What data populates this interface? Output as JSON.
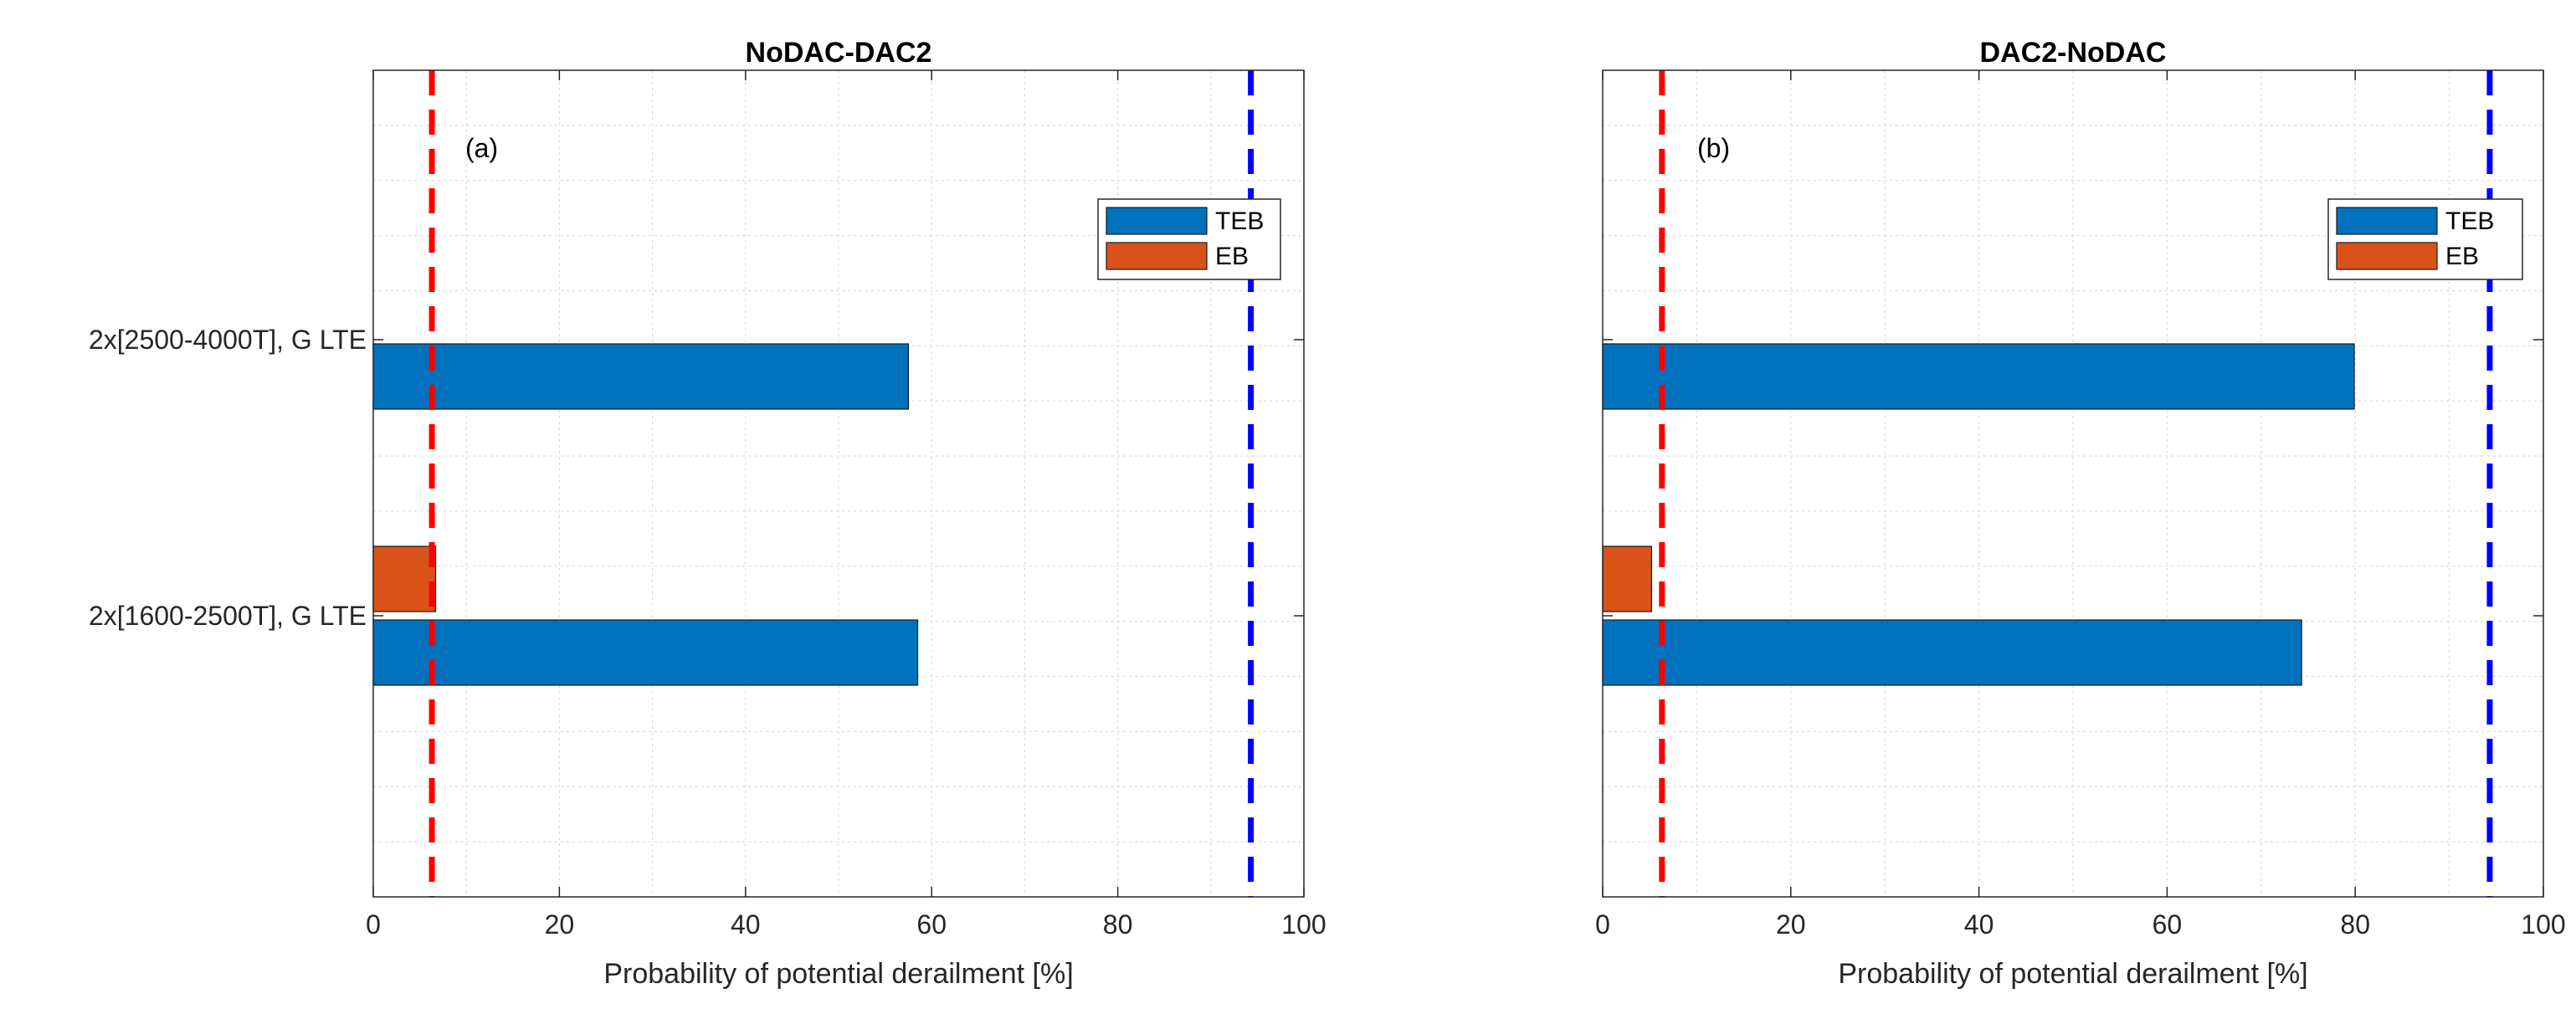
{
  "colors": {
    "teb": "#0072BD",
    "eb": "#D95319",
    "threshold_low": "#FF0000",
    "threshold_high": "#0000FF",
    "grid": "#dcdcdc",
    "axis": "#262626"
  },
  "chart_data": [
    {
      "type": "bar",
      "orientation": "horizontal",
      "title": "NoDAC-DAC2",
      "panel_label": "(a)",
      "xlabel": "Probability of potential derailment [%]",
      "ylabel": "",
      "xlim": [
        0,
        100
      ],
      "xticks": [
        "0",
        "20",
        "40",
        "60",
        "80",
        "100"
      ],
      "categories": [
        "2x[1600-2500T], G LTE",
        "2x[2500-4000T], G LTE"
      ],
      "series": [
        {
          "name": "TEB",
          "values": [
            58.5,
            57.5
          ]
        },
        {
          "name": "EB",
          "values": [
            6.7,
            null
          ]
        }
      ],
      "reference_lines": [
        6.3,
        94.3
      ],
      "grid": true,
      "legend": "upper-right"
    },
    {
      "type": "bar",
      "orientation": "horizontal",
      "title": "DAC2-NoDAC",
      "panel_label": "(b)",
      "xlabel": "Probability of potential derailment [%]",
      "ylabel": "",
      "xlim": [
        0,
        100
      ],
      "xticks": [
        "0",
        "20",
        "40",
        "60",
        "80",
        "100"
      ],
      "categories": [
        "2x[1600-2500T], G LTE",
        "2x[2500-4000T], G LTE"
      ],
      "series": [
        {
          "name": "TEB",
          "values": [
            74.3,
            79.9
          ]
        },
        {
          "name": "EB",
          "values": [
            5.2,
            null
          ]
        }
      ],
      "reference_lines": [
        6.3,
        94.3
      ],
      "grid": true,
      "legend": "upper-right"
    }
  ]
}
